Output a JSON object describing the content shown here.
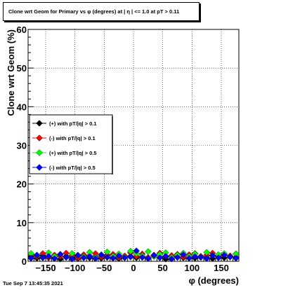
{
  "title": "Clone wrt Geom for Primary vs φ (degrees) at |  η | <= 1.0 at pT > 0.11",
  "footer": "Tue Sep  7 13:45:35 2021",
  "chart_data": {
    "type": "scatter",
    "title": "Clone wrt Geom for Primary vs φ (degrees) at |  η | <= 1.0 at pT > 0.11",
    "xlabel": "φ (degrees)",
    "ylabel": "Clone wrt Geom (%)",
    "xlim": [
      -180,
      180
    ],
    "ylim": [
      0,
      60
    ],
    "x_ticks": [
      -150,
      -100,
      -50,
      0,
      50,
      100,
      150
    ],
    "x_tick_labels": [
      "−150",
      "−100",
      "−50",
      "0",
      "50",
      "100",
      "150"
    ],
    "y_ticks": [
      0,
      10,
      20,
      30,
      40,
      50,
      60
    ],
    "grid": true,
    "legend_position": "left-middle",
    "x": [
      -175,
      -165,
      -155,
      -145,
      -135,
      -125,
      -115,
      -105,
      -95,
      -85,
      -75,
      -65,
      -55,
      -45,
      -35,
      -25,
      -15,
      -5,
      5,
      15,
      25,
      35,
      45,
      55,
      65,
      75,
      85,
      95,
      105,
      115,
      125,
      135,
      145,
      155,
      165,
      175
    ],
    "series": [
      {
        "name": "(+) with pT/|q| > 0.1",
        "color": "#000000",
        "values": [
          1.2,
          0.8,
          1.5,
          0.9,
          1.1,
          0.6,
          1.3,
          1.0,
          0.7,
          1.4,
          0.9,
          1.2,
          0.8,
          1.6,
          1.0,
          0.7,
          1.1,
          1.3,
          0.9,
          1.2,
          0.8,
          1.5,
          1.0,
          0.6,
          1.3,
          1.1,
          0.9,
          1.4,
          0.8,
          1.2,
          1.0,
          0.7,
          1.3,
          0.9,
          1.1,
          1.0
        ]
      },
      {
        "name": "(-) with pT/|q| > 0.1",
        "color": "#ff0000",
        "values": [
          1.8,
          1.2,
          2.0,
          1.0,
          1.6,
          1.3,
          2.1,
          1.5,
          0.9,
          1.7,
          1.4,
          2.0,
          1.1,
          1.5,
          1.8,
          1.0,
          1.4,
          2.2,
          1.3,
          1.9,
          1.0,
          1.6,
          2.1,
          1.2,
          1.5,
          1.8,
          1.1,
          1.7,
          2.0,
          1.3,
          1.6,
          2.1,
          1.2,
          1.8,
          1.4,
          1.9
        ]
      },
      {
        "name": "(+) with pT/|q| > 0.5",
        "color": "#00ff00",
        "values": [
          2.0,
          1.5,
          1.0,
          2.2,
          1.3,
          1.8,
          1.1,
          2.0,
          1.6,
          1.2,
          2.3,
          1.0,
          1.7,
          2.4,
          1.3,
          1.9,
          1.1,
          2.6,
          2.0,
          1.4,
          2.5,
          1.2,
          1.8,
          2.2,
          1.0,
          1.6,
          2.1,
          1.3,
          1.9,
          1.1,
          2.3,
          1.5,
          1.7,
          2.0,
          1.2,
          1.9
        ]
      },
      {
        "name": "(-) with pT/|q| > 0.5",
        "color": "#0000ff",
        "values": [
          0.8,
          1.6,
          0.9,
          1.3,
          0.7,
          1.8,
          1.0,
          0.6,
          1.5,
          0.9,
          1.2,
          0.7,
          1.6,
          1.0,
          0.8,
          1.4,
          0.9,
          1.1,
          2.7,
          1.0,
          0.7,
          1.5,
          0.9,
          1.3,
          0.6,
          1.0,
          1.7,
          0.8,
          1.2,
          1.0,
          0.7,
          1.4,
          0.9,
          1.6,
          1.1,
          0.8
        ]
      }
    ]
  }
}
